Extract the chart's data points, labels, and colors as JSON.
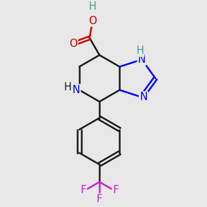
{
  "bg_color": "#e8e8e8",
  "bond_color": "#1a1a1a",
  "N_color": "#0000ff",
  "O_color": "#cc0000",
  "F_color": "#cc22cc",
  "NH_color": "#4a9a9a",
  "line_width": 1.8,
  "figsize": [
    3.0,
    3.0
  ],
  "dpi": 100,
  "xlim": [
    0,
    10
  ],
  "ylim": [
    0,
    10
  ]
}
